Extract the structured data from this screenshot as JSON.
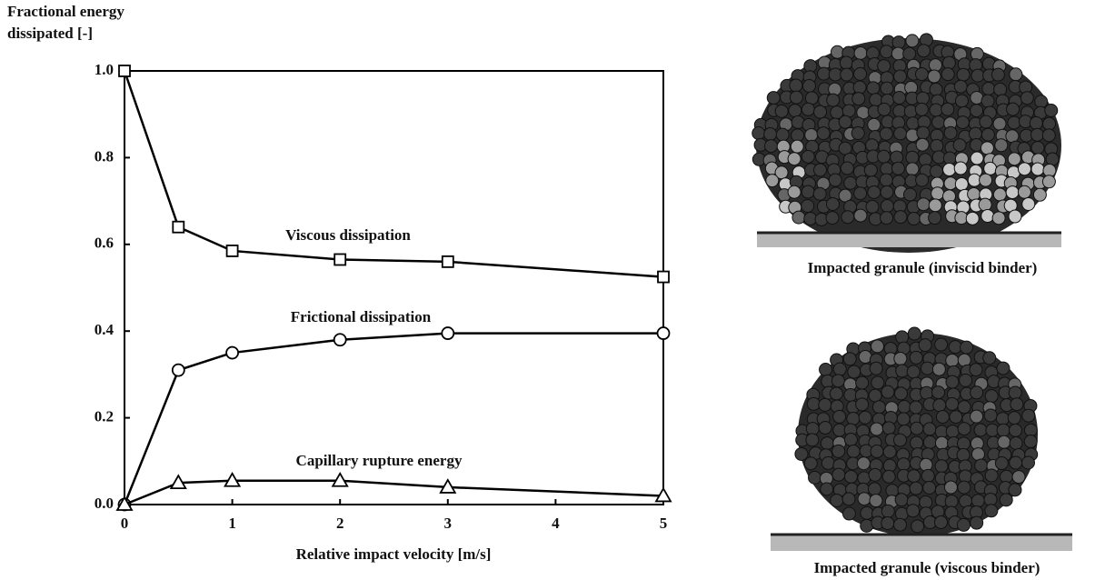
{
  "chart_data": {
    "type": "line",
    "y_label": [
      "Fractional energy",
      "dissipated  [-]"
    ],
    "x_label": "Relative impact velocity [m/s]",
    "x": [
      0,
      0.5,
      1,
      2,
      3,
      5
    ],
    "xlim": [
      0,
      5
    ],
    "xticks": [
      0,
      1,
      2,
      3,
      4,
      5
    ],
    "ylim": [
      0,
      1
    ],
    "yticks": [
      {
        "value": 0,
        "label": "0.0"
      },
      0.2,
      0.4,
      0.6,
      0.8,
      {
        "value": 1,
        "label": "1.0"
      }
    ],
    "series": [
      {
        "name": "Viscous dissipation",
        "color": "#000000",
        "marker": "square",
        "values": [
          1.0,
          0.64,
          0.585,
          0.565,
          0.56,
          0.525
        ]
      },
      {
        "name": "Frictional dissipation",
        "color": "#000000",
        "marker": "circle",
        "values": [
          0,
          0.31,
          0.35,
          0.38,
          0.395,
          0.395
        ]
      },
      {
        "name": "Capillary rupture energy",
        "color": "#000000",
        "marker": "triangle",
        "values": [
          0,
          0.05,
          0.055,
          0.055,
          0.04,
          0.02
        ]
      }
    ],
    "images": [
      {
        "caption": "Impacted granule (inviscid binder)"
      },
      {
        "caption": "Impacted granule (viscous binder)"
      }
    ]
  }
}
